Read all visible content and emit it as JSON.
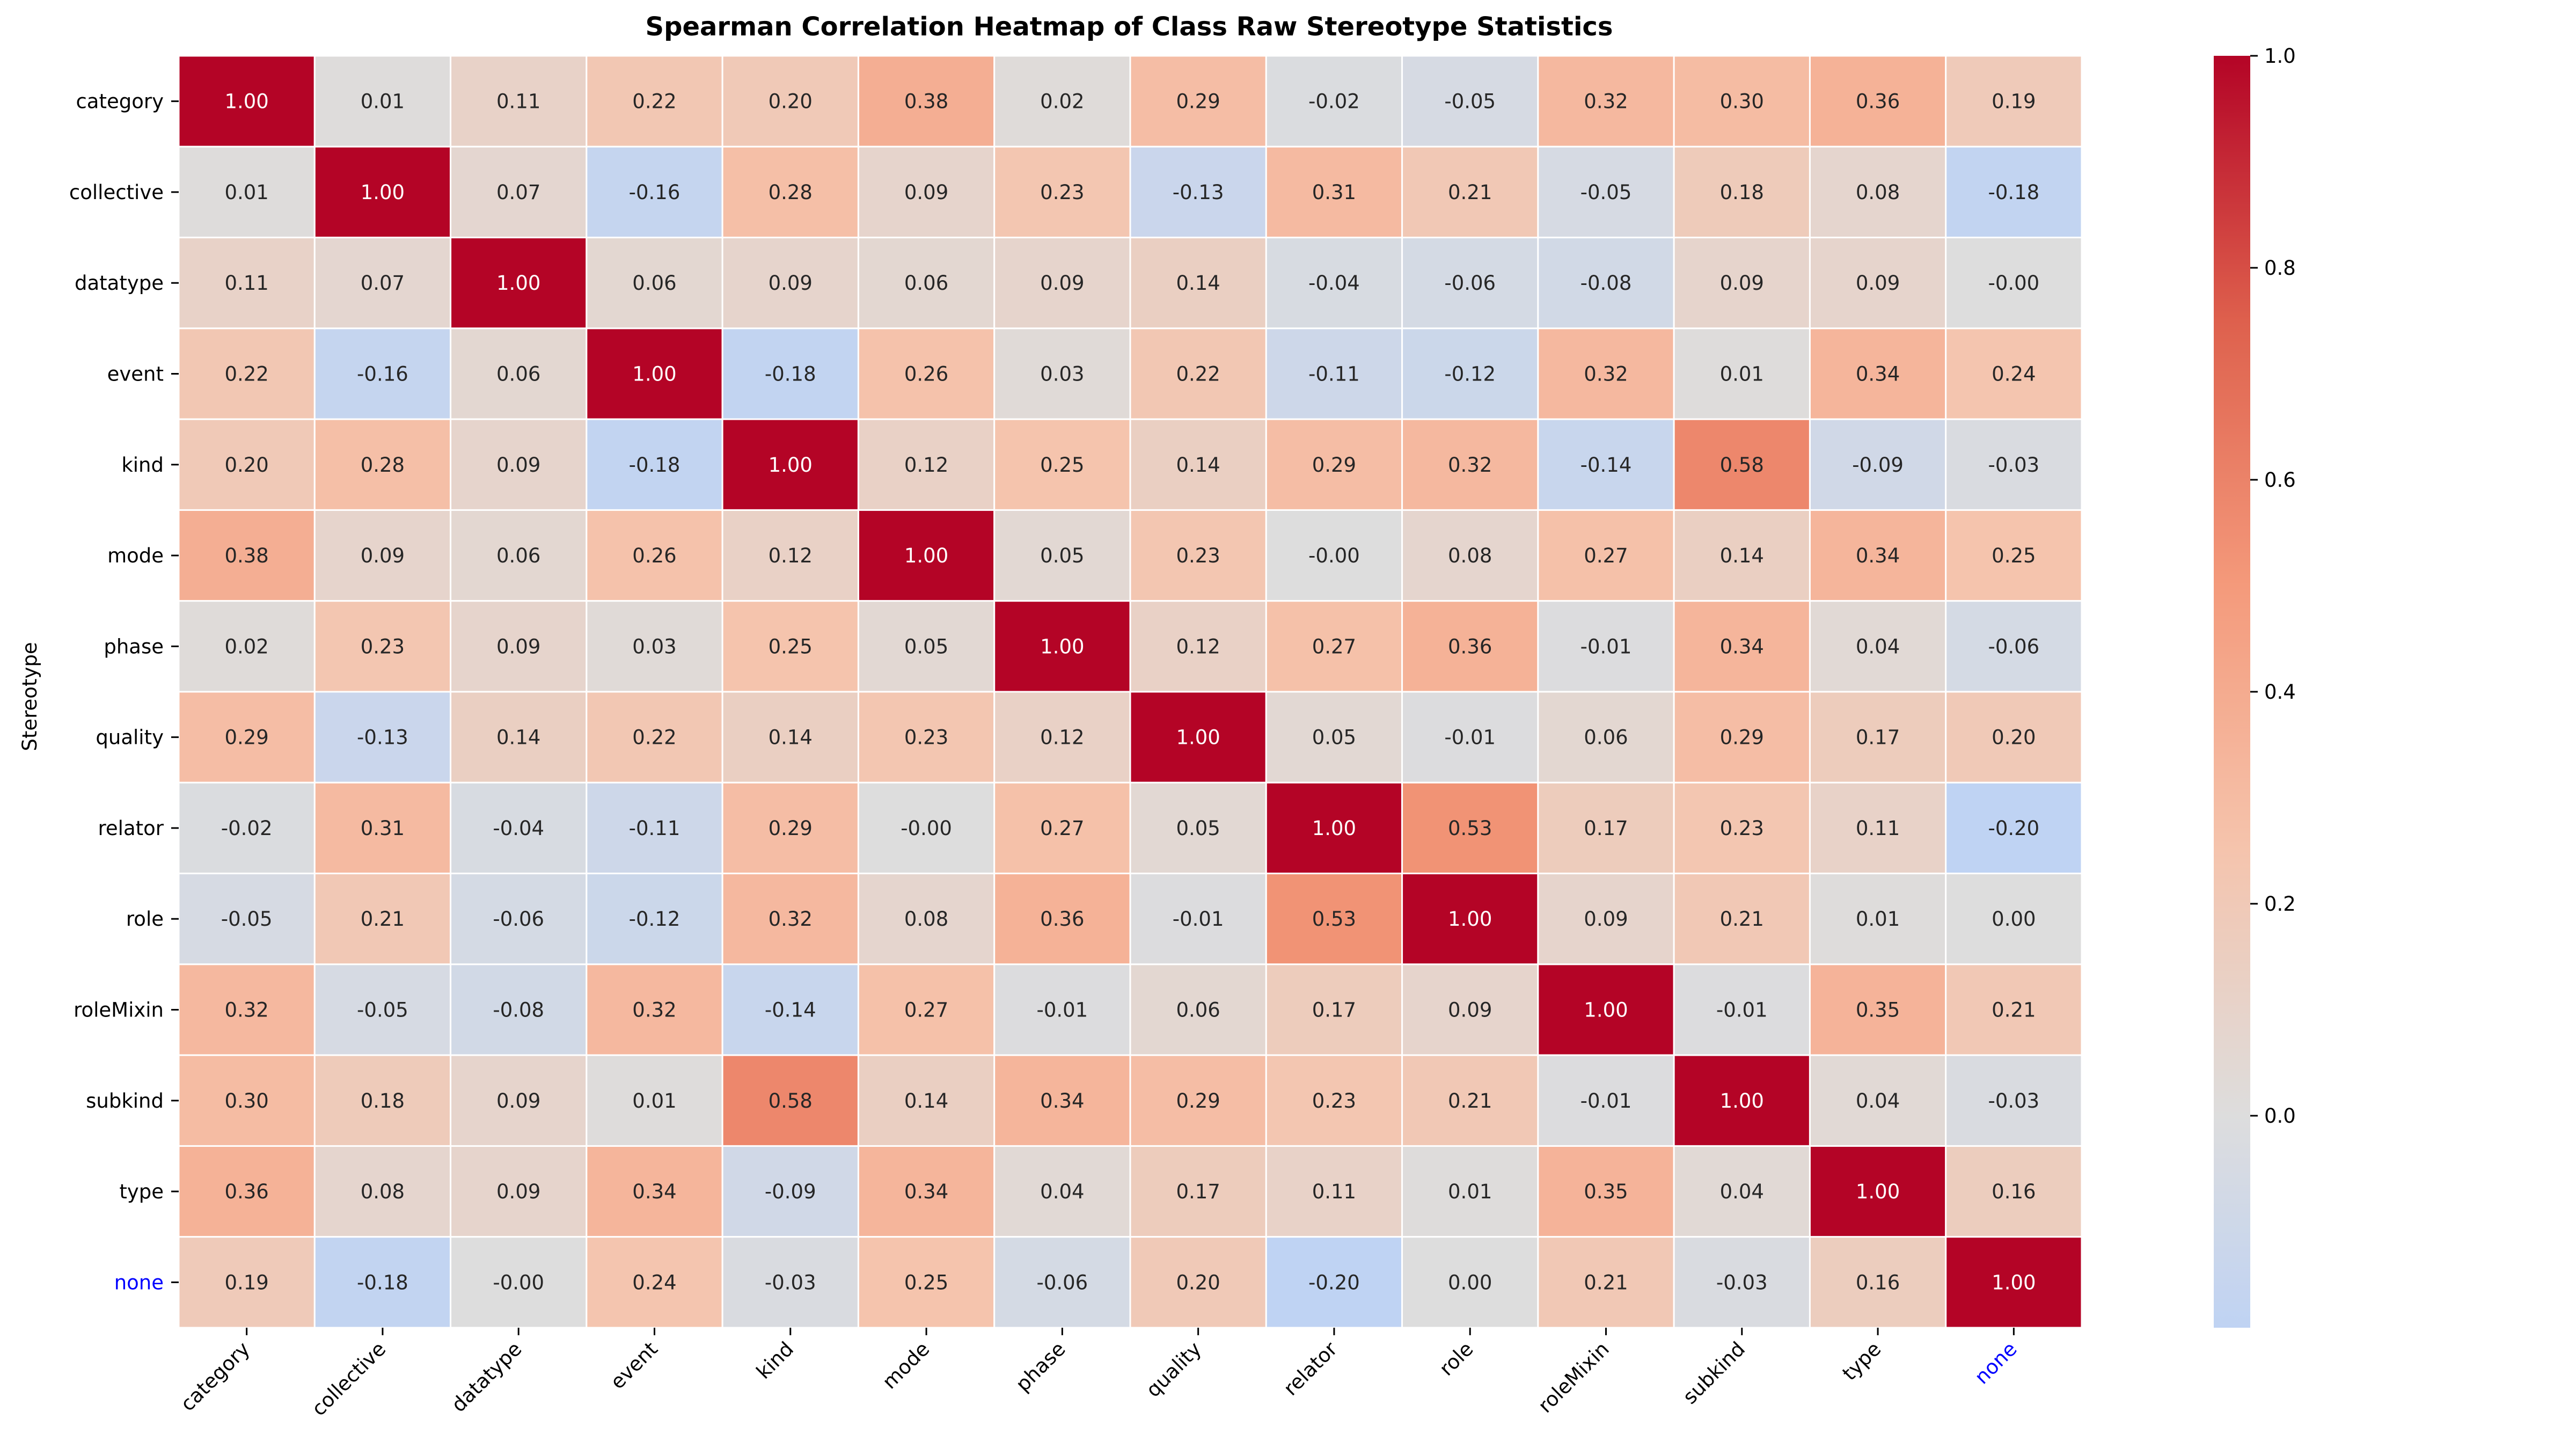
{
  "chart_data": {
    "type": "heatmap",
    "title": "Spearman Correlation Heatmap of Class Raw Stereotype Statistics",
    "xlabel": "",
    "ylabel": "Stereotype",
    "row_labels": [
      "category",
      "collective",
      "datatype",
      "event",
      "kind",
      "mode",
      "phase",
      "quality",
      "relator",
      "role",
      "roleMixin",
      "subkind",
      "type",
      "none"
    ],
    "col_labels": [
      "category",
      "collective",
      "datatype",
      "event",
      "kind",
      "mode",
      "phase",
      "quality",
      "relator",
      "role",
      "roleMixin",
      "subkind",
      "type",
      "none"
    ],
    "highlight_labels": [
      "none"
    ],
    "values": [
      [
        1.0,
        0.01,
        0.11,
        0.22,
        0.2,
        0.38,
        0.02,
        0.29,
        -0.02,
        -0.05,
        0.32,
        0.3,
        0.36,
        0.19
      ],
      [
        0.01,
        1.0,
        0.07,
        -0.16,
        0.28,
        0.09,
        0.23,
        -0.13,
        0.31,
        0.21,
        -0.05,
        0.18,
        0.08,
        -0.18
      ],
      [
        0.11,
        0.07,
        1.0,
        0.06,
        0.09,
        0.06,
        0.09,
        0.14,
        -0.04,
        -0.06,
        -0.08,
        0.09,
        0.09,
        -0.0
      ],
      [
        0.22,
        -0.16,
        0.06,
        1.0,
        -0.18,
        0.26,
        0.03,
        0.22,
        -0.11,
        -0.12,
        0.32,
        0.01,
        0.34,
        0.24
      ],
      [
        0.2,
        0.28,
        0.09,
        -0.18,
        1.0,
        0.12,
        0.25,
        0.14,
        0.29,
        0.32,
        -0.14,
        0.58,
        -0.09,
        -0.03
      ],
      [
        0.38,
        0.09,
        0.06,
        0.26,
        0.12,
        1.0,
        0.05,
        0.23,
        -0.0,
        0.08,
        0.27,
        0.14,
        0.34,
        0.25
      ],
      [
        0.02,
        0.23,
        0.09,
        0.03,
        0.25,
        0.05,
        1.0,
        0.12,
        0.27,
        0.36,
        -0.01,
        0.34,
        0.04,
        -0.06
      ],
      [
        0.29,
        -0.13,
        0.14,
        0.22,
        0.14,
        0.23,
        0.12,
        1.0,
        0.05,
        -0.01,
        0.06,
        0.29,
        0.17,
        0.2
      ],
      [
        -0.02,
        0.31,
        -0.04,
        -0.11,
        0.29,
        -0.0,
        0.27,
        0.05,
        1.0,
        0.53,
        0.17,
        0.23,
        0.11,
        -0.2
      ],
      [
        -0.05,
        0.21,
        -0.06,
        -0.12,
        0.32,
        0.08,
        0.36,
        -0.01,
        0.53,
        1.0,
        0.09,
        0.21,
        0.01,
        0.0
      ],
      [
        0.32,
        -0.05,
        -0.08,
        0.32,
        -0.14,
        0.27,
        -0.01,
        0.06,
        0.17,
        0.09,
        1.0,
        -0.01,
        0.35,
        0.21
      ],
      [
        0.3,
        0.18,
        0.09,
        0.01,
        0.58,
        0.14,
        0.34,
        0.29,
        0.23,
        0.21,
        -0.01,
        1.0,
        0.04,
        -0.03
      ],
      [
        0.36,
        0.08,
        0.09,
        0.34,
        -0.09,
        0.34,
        0.04,
        0.17,
        0.11,
        0.01,
        0.35,
        0.04,
        1.0,
        0.16
      ],
      [
        0.19,
        -0.18,
        -0.0,
        0.24,
        -0.03,
        0.25,
        -0.06,
        0.2,
        -0.2,
        0.0,
        0.21,
        -0.03,
        0.16,
        1.0
      ]
    ],
    "colormap": "coolwarm",
    "vmin": -0.2,
    "vmax": 1.0,
    "colorbar_ticks": [
      0.0,
      0.2,
      0.4,
      0.6,
      0.8,
      1.0
    ],
    "colorbar_tick_labels": [
      "0.0",
      "0.2",
      "0.4",
      "0.6",
      "0.8",
      "1.0"
    ],
    "annotation_format": "0.00",
    "grid": false,
    "colors": {
      "highlight_label": "#0000ff",
      "cell_border": "#ffffff"
    }
  }
}
